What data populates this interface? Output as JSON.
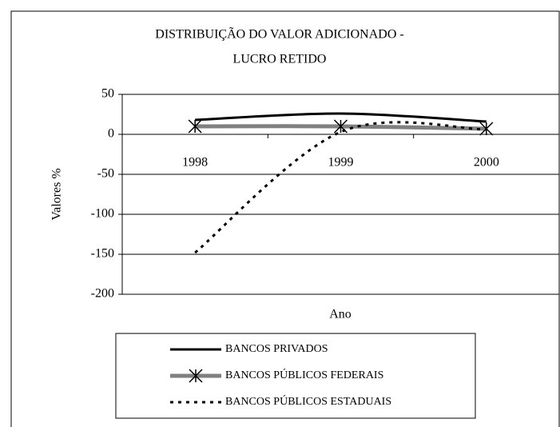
{
  "chart_data": {
    "type": "line",
    "title": [
      "DISTRIBUIÇÃO DO VALOR ADICIONADO -",
      "LUCRO RETIDO"
    ],
    "x_label": "Ano",
    "y_label": "Valores %",
    "categories": [
      "1998",
      "1999",
      "2000"
    ],
    "series": [
      {
        "name": "BANCOS PRIVADOS",
        "color": "#000000",
        "line_style": "solid",
        "values": [
          18,
          26,
          16
        ]
      },
      {
        "name": "BANCOS PÚBLICOS FEDERAIS",
        "color": "#808080",
        "line_style": "solid",
        "marker": "asterisk",
        "values": [
          10,
          10,
          7
        ]
      },
      {
        "name": "BANCOS PÚBLICOS ESTADUAIS",
        "color": "#000000",
        "line_style": "dotted",
        "values": [
          -148,
          3,
          6
        ]
      }
    ],
    "ylim": [
      -200,
      50
    ],
    "yticks": [
      50,
      0,
      -50,
      -100,
      -150,
      -200
    ],
    "grid": true,
    "legend": "bottom",
    "smooth": true
  }
}
